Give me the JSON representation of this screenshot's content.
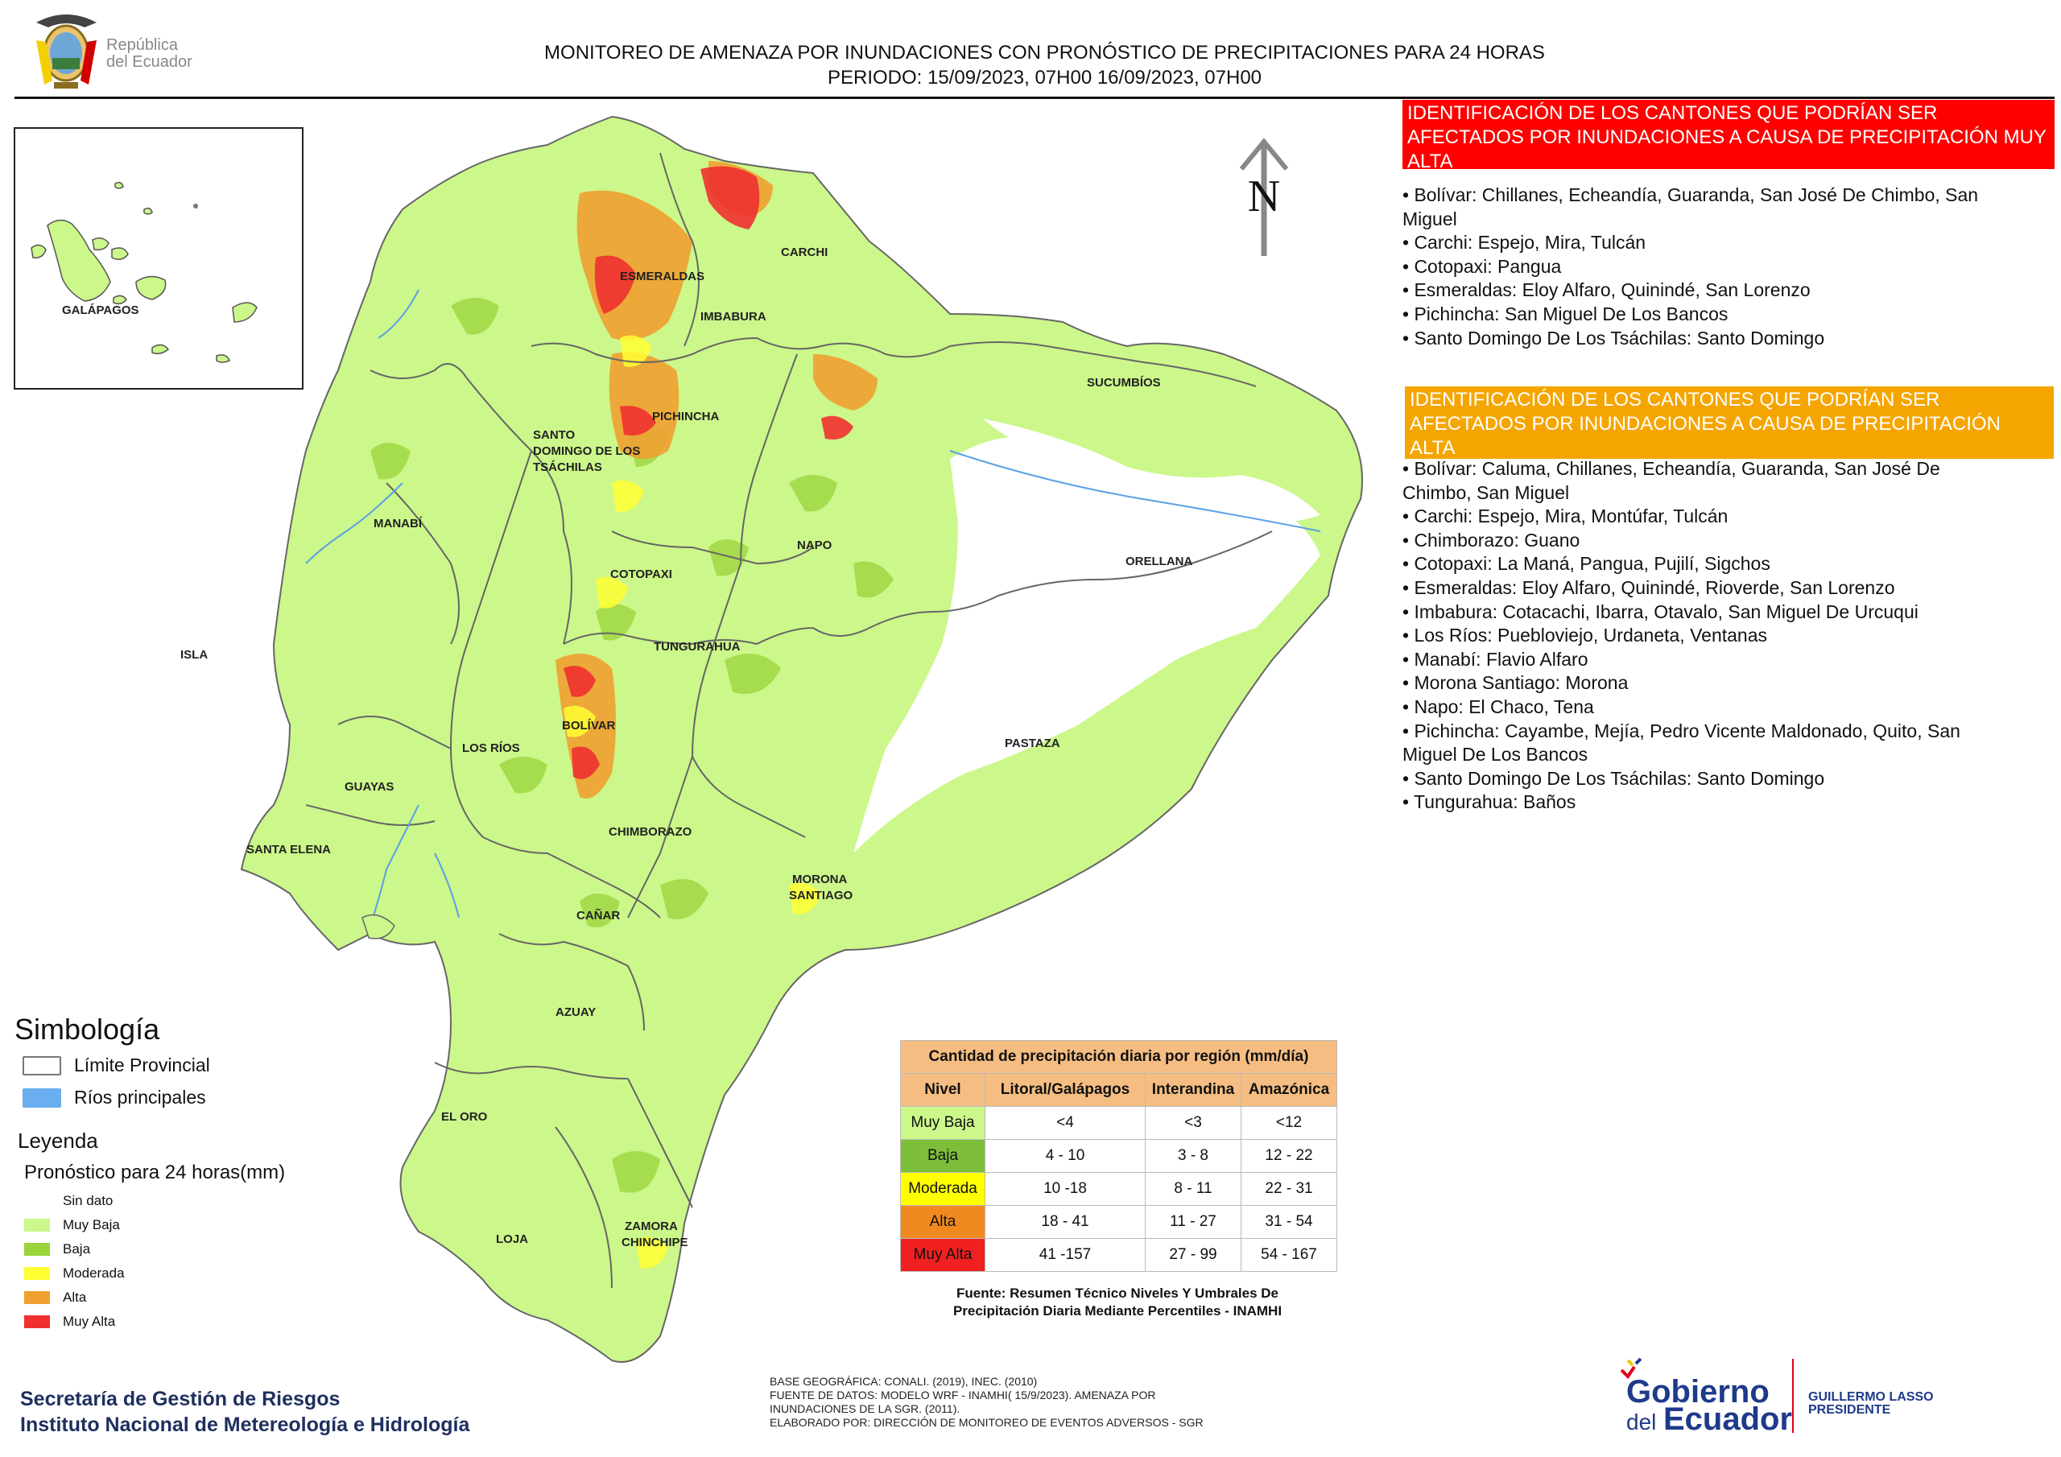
{
  "header": {
    "title_line1": "MONITOREO DE AMENAZA POR INUNDACIONES  CON PRONÓSTICO DE  PRECIPITACIONES PARA 24 HORAS",
    "title_line2": "PERIODO: 15/09/2023, 07H00 16/09/2023, 07H00",
    "republica_line1": "República",
    "republica_line2": "del Ecuador"
  },
  "map": {
    "labels": {
      "carchi": "CARCHI",
      "esmeraldas": "ESMERALDAS",
      "imbabura": "IMBABURA",
      "sucumbios": "SUCUMBÍOS",
      "pichincha": "PICHINCHA",
      "santo_domingo_1": "SANTO",
      "santo_domingo_2": "DOMINGO DE LOS",
      "santo_domingo_3": "TSÁCHILAS",
      "manabi": "MANABÍ",
      "napo": "NAPO",
      "orellana": "ORELLANA",
      "cotopaxi": "COTOPAXI",
      "isla": "ISLA",
      "tungurahua": "TUNGURAHUA",
      "bolivar": "BOLÍVAR",
      "los_rios": "LOS RÍOS",
      "pastaza": "PASTAZA",
      "guayas": "GUAYAS",
      "chimborazo": "CHIMBORAZO",
      "santa_elena": "SANTA ELENA",
      "morona_1": "MORONA",
      "morona_2": "SANTIAGO",
      "canar": "CAÑAR",
      "azuay": "AZUAY",
      "el_oro": "EL ORO",
      "loja": "LOJA",
      "zamora_1": "ZAMORA",
      "zamora_2": "CHINCHIPE",
      "galapagos": "GALÁPAGOS"
    },
    "north_label": "N"
  },
  "muy_alta": {
    "heading": "IDENTIFICACIÓN DE LOS CANTONES QUE PODRÍAN SER AFECTADOS POR INUNDACIONES  A CAUSA DE PRECIPITACIÓN MUY ALTA",
    "items": [
      "• Bolívar: Chillanes, Echeandía, Guaranda, San José De Chimbo, San",
      "Miguel",
      "• Carchi: Espejo, Mira, Tulcán",
      "• Cotopaxi: Pangua",
      "• Esmeraldas: Eloy Alfaro, Quinindé, San Lorenzo",
      "• Pichincha: San Miguel De Los Bancos",
      "• Santo Domingo De Los Tsáchilas: Santo Domingo"
    ]
  },
  "alta": {
    "heading": "IDENTIFICACIÓN DE LOS CANTONES QUE  PODRÍAN SER AFECTADOS POR INUNDACIONES  A CAUSA DE PRECIPITACIÓN ALTA",
    "items": [
      "• Bolívar: Caluma, Chillanes, Echeandía, Guaranda, San José De",
      "Chimbo, San Miguel",
      "• Carchi: Espejo, Mira, Montúfar, Tulcán",
      "• Chimborazo: Guano",
      "• Cotopaxi: La Maná, Pangua, Pujilí, Sigchos",
      "• Esmeraldas: Eloy Alfaro, Quinindé, Rioverde, San Lorenzo",
      "• Imbabura: Cotacachi, Ibarra, Otavalo, San Miguel De Urcuqui",
      "• Los Ríos: Puebloviejo, Urdaneta, Ventanas",
      "• Manabí: Flavio Alfaro",
      "• Morona Santiago: Morona",
      "• Napo: El Chaco, Tena",
      "• Pichincha: Cayambe, Mejía, Pedro Vicente Maldonado, Quito, San",
      "Miguel De Los Bancos",
      "• Santo Domingo De Los Tsáchilas: Santo Domingo",
      "• Tungurahua: Baños"
    ]
  },
  "symbology": {
    "title": "Simbología",
    "limite": "Límite Provincial",
    "rios": "Ríos principales",
    "leyenda": "Leyenda",
    "pronostico": "Pronóstico para 24 horas(mm)",
    "classes": [
      {
        "label": "Sin dato",
        "color": "#ffffff"
      },
      {
        "label": "Muy Baja",
        "color": "#ccf78a"
      },
      {
        "label": "Baja",
        "color": "#9ad43a"
      },
      {
        "label": "Moderada",
        "color": "#ffff33"
      },
      {
        "label": "Alta",
        "color": "#f0a030"
      },
      {
        "label": "Muy Alta",
        "color": "#f03030"
      }
    ]
  },
  "table": {
    "title": "Cantidad de precipitación diaria por región (mm/día)",
    "headers": [
      "Nivel",
      "Litoral/Galápagos",
      "Interandina",
      "Amazónica"
    ],
    "rows": [
      {
        "nivel": "Muy Baja",
        "lit": "<4",
        "int": "<3",
        "ama": "<12",
        "color": "#ccf78a"
      },
      {
        "nivel": "Baja",
        "lit": "4 - 10",
        "int": "3 - 8",
        "ama": "12 - 22",
        "color": "#7dbf3a"
      },
      {
        "nivel": "Moderada",
        "lit": "10 -18",
        "int": "8 - 11",
        "ama": "22 - 31",
        "color": "#ffff00"
      },
      {
        "nivel": "Alta",
        "lit": "18 - 41",
        "int": "11 - 27",
        "ama": "31 - 54",
        "color": "#f08a20"
      },
      {
        "nivel": "Muy Alta",
        "lit": "41 -157",
        "int": "27 - 99",
        "ama": "54 - 167",
        "color": "#f02020"
      }
    ],
    "source_line1": "Fuente: Resumen Técnico Niveles Y Umbrales De",
    "source_line2": "Precipitación Diaria Mediante Percentiles - INAMHI"
  },
  "footer": {
    "sgr_line1": "Secretaría de Gestión de Riesgos",
    "sgr_line2": "Instituto Nacional de Metereología e Hidrología",
    "base_1": "BASE GEOGRÁFICA: CONALI. (2019), INEC. (2010)",
    "base_2": "FUENTE DE DATOS: MODELO WRF - INAMHI( 15/9/2023).  AMENAZA POR",
    "base_3": "INUNDACIONES DE LA SGR. (2011).",
    "base_4": "ELABORADO POR: DIRECCIÓN DE MONITOREO DE EVENTOS ADVERSOS - SGR",
    "gob_1": "Gobierno",
    "gob_2": "del",
    "gob_3": "Ecuador",
    "pres_1": "GUILLERMO LASSO",
    "pres_2": "PRESIDENTE"
  }
}
